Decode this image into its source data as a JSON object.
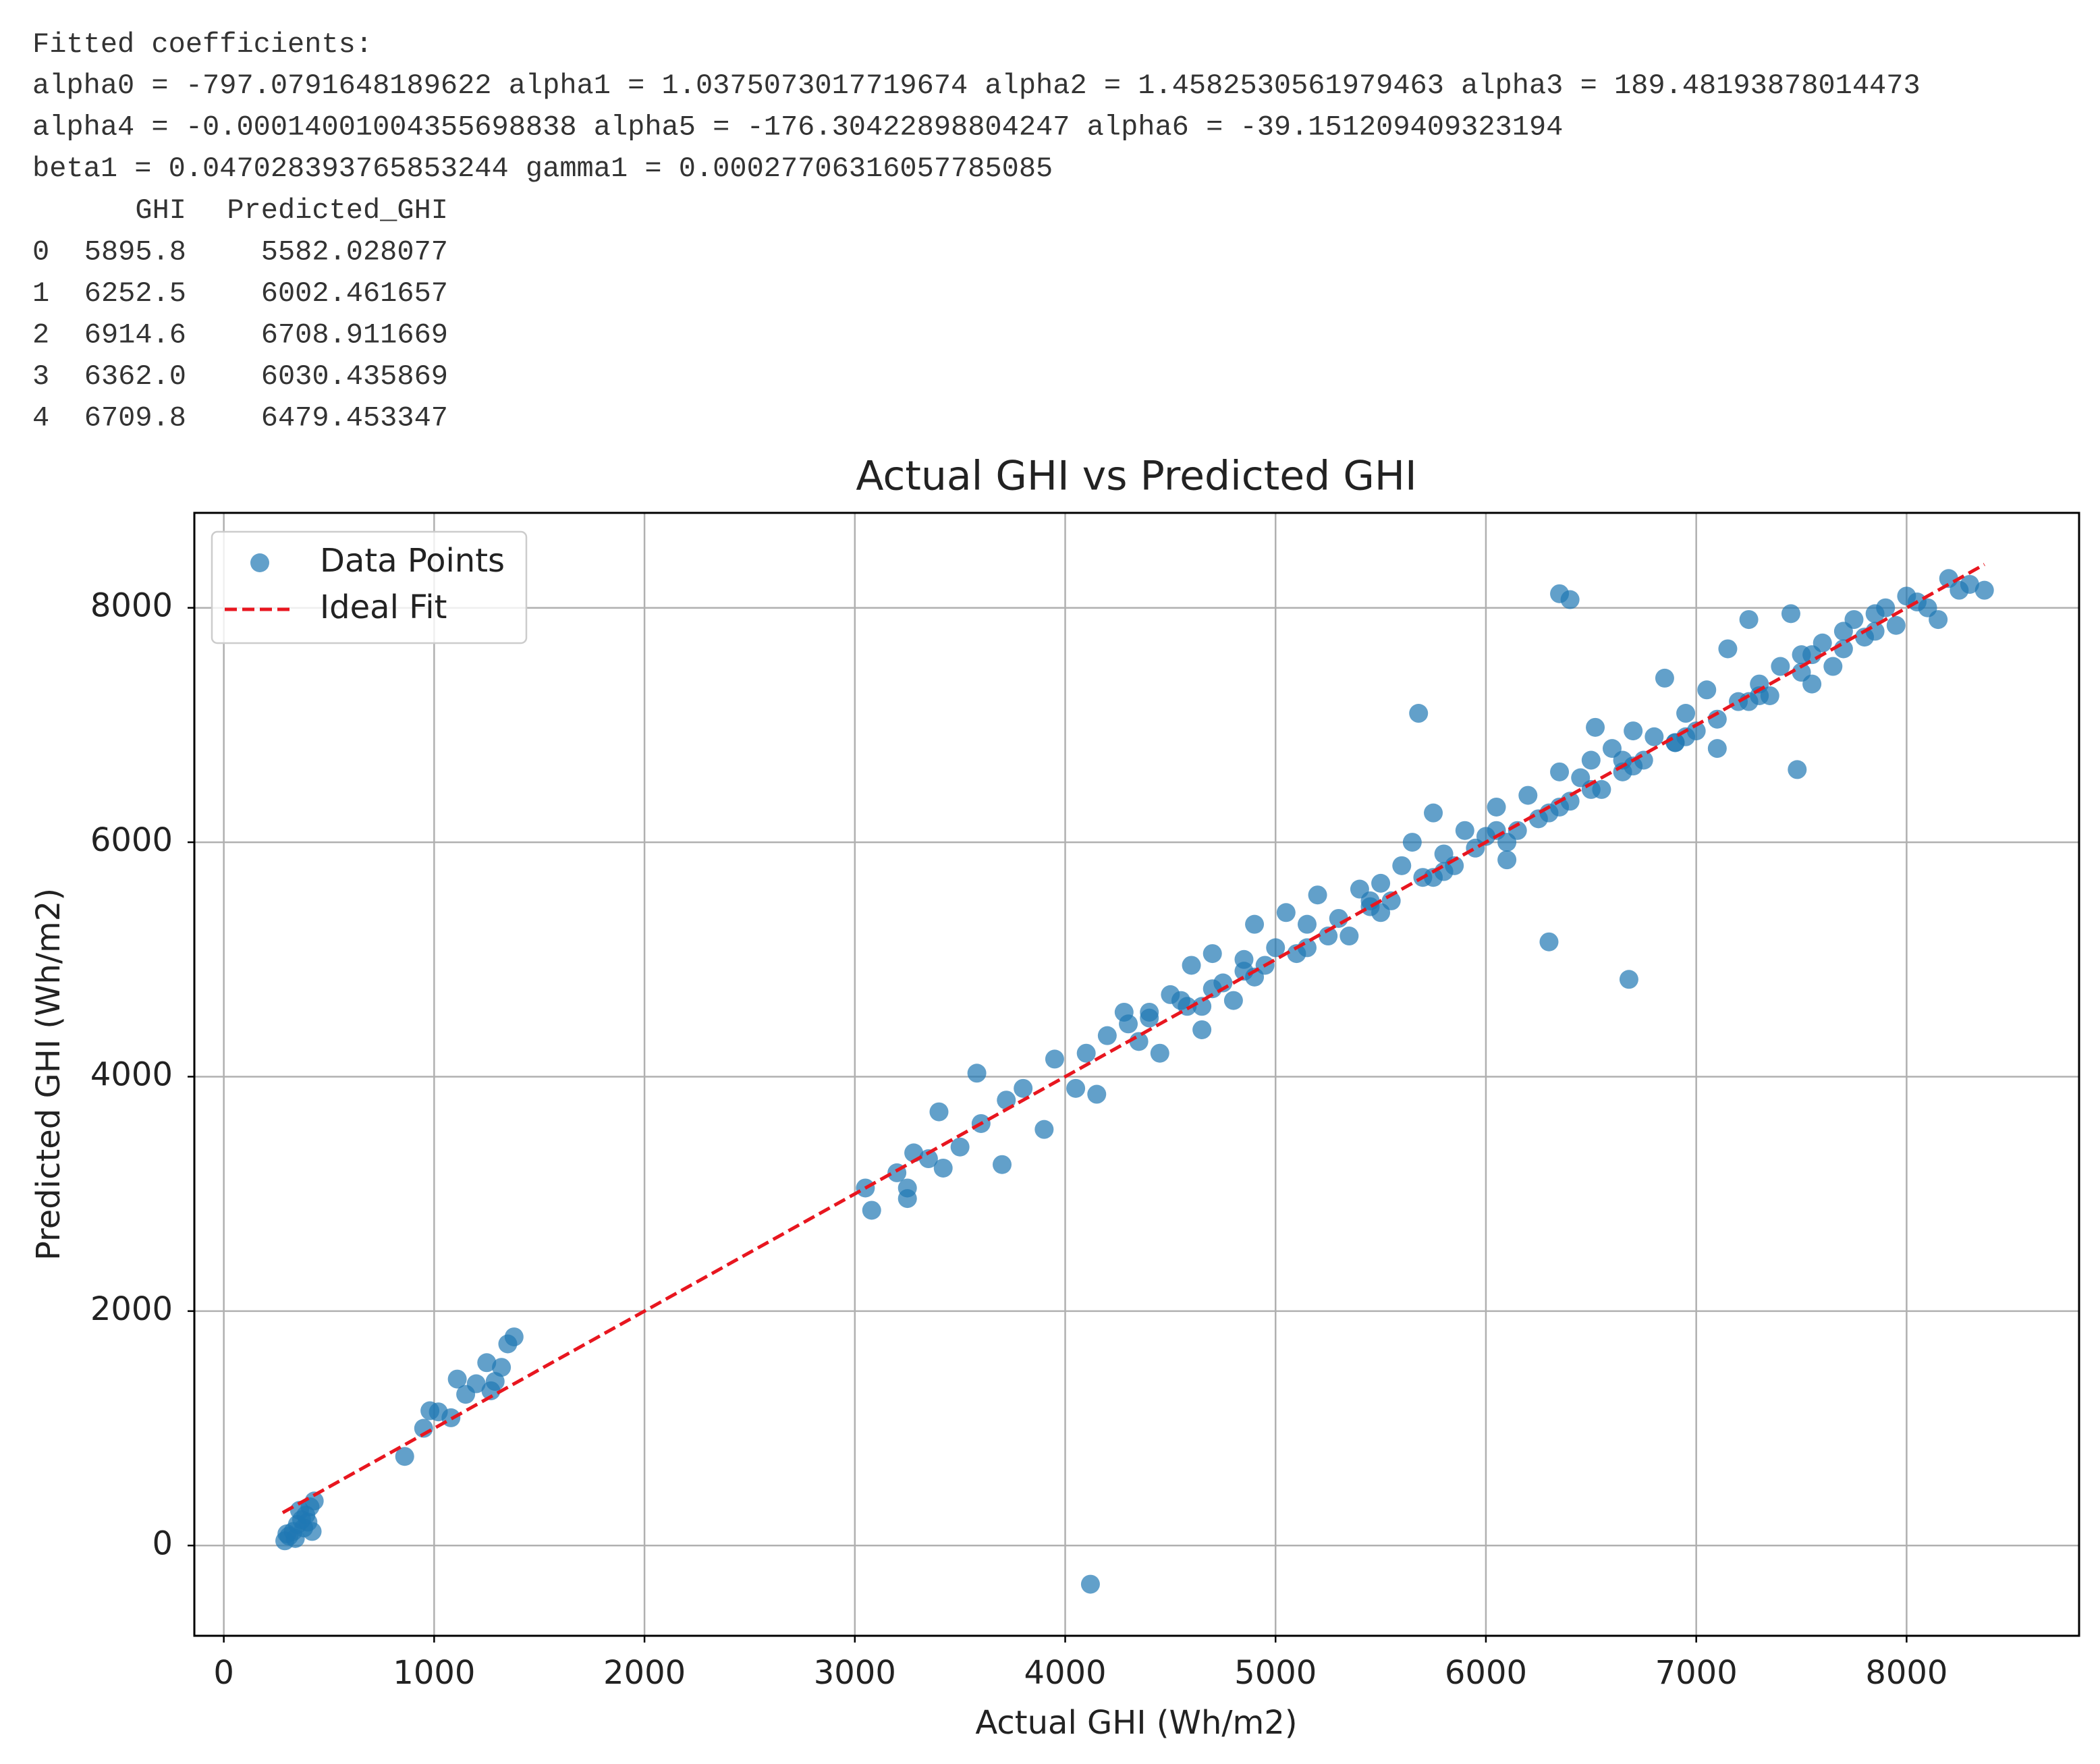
{
  "console": {
    "heading": "Fitted coefficients:",
    "lines": [
      "alpha0 = -797.0791648189622 alpha1 = 1.0375073017719674 alpha2 = 1.4582530561979463 alpha3 = 189.48193878014473",
      "alpha4 = -0.00014001004355698838 alpha5 = -176.30422898804247 alpha6 = -39.151209409323194",
      "beta1 = 0.047028393765853244 gamma1 = 0.00027706316057785085"
    ],
    "table": {
      "columns": [
        "GHI",
        "Predicted_GHI"
      ],
      "index": [
        "0",
        "1",
        "2",
        "3",
        "4"
      ],
      "rows": [
        [
          "5895.8",
          "5582.028077"
        ],
        [
          "6252.5",
          "6002.461657"
        ],
        [
          "6914.6",
          "6708.911669"
        ],
        [
          "6362.0",
          "6030.435869"
        ],
        [
          "6709.8",
          "6479.453347"
        ]
      ]
    }
  },
  "chart_data": {
    "type": "scatter",
    "title": "Actual GHI vs Predicted GHI",
    "x_label": "Actual GHI (Wh/m2)",
    "y_label": "Predicted GHI (Wh/m2)",
    "xlim": [
      -140,
      8820
    ],
    "ylim": [
      -770,
      8810
    ],
    "xticks": [
      0,
      1000,
      2000,
      3000,
      4000,
      5000,
      6000,
      7000,
      8000
    ],
    "yticks": [
      0,
      2000,
      4000,
      6000,
      8000
    ],
    "grid": true,
    "legend": "upper-left",
    "series": [
      {
        "name": "Data Points",
        "kind": "scatter",
        "color": "#1f77b4",
        "opacity": 0.7,
        "x": [
          290,
          310,
          330,
          350,
          370,
          390,
          410,
          430,
          300,
          340,
          380,
          420,
          360,
          400,
          860,
          950,
          980,
          1020,
          1080,
          1110,
          1150,
          1200,
          1250,
          1290,
          1320,
          1350,
          1380,
          1270,
          3050,
          3080,
          3200,
          3250,
          3250,
          3280,
          3350,
          3400,
          3420,
          3500,
          3600,
          3700,
          3720,
          3800,
          3900,
          3580,
          3950,
          4050,
          4100,
          4150,
          4200,
          4280,
          4350,
          4400,
          4450,
          4500,
          4580,
          4600,
          4650,
          4700,
          4750,
          4800,
          4850,
          4900,
          4950,
          5000,
          4120,
          5050,
          5100,
          5150,
          5200,
          5300,
          5350,
          5400,
          5450,
          5500,
          5550,
          5600,
          5650,
          5680,
          5700,
          5750,
          5800,
          5850,
          5900,
          5950,
          6000,
          6050,
          6100,
          6150,
          6200,
          6250,
          6300,
          6350,
          6350,
          6400,
          6400,
          6450,
          6500,
          6520,
          6550,
          6600,
          6650,
          6680,
          6700,
          6750,
          6800,
          6850,
          6900,
          6950,
          7000,
          7050,
          7100,
          7150,
          7200,
          7250,
          7300,
          7350,
          7400,
          7450,
          7480,
          7500,
          7550,
          7600,
          7650,
          7700,
          7750,
          7800,
          7850,
          7900,
          7950,
          8000,
          8050,
          8100,
          8150,
          8200,
          8250,
          8300,
          8370,
          4300,
          4550,
          4700,
          4900,
          5250,
          5500,
          5800,
          6100,
          6300,
          6500,
          6700,
          6900,
          7100,
          7300,
          7500,
          7700,
          4400,
          4650,
          4850,
          5150,
          5450,
          5750,
          6050,
          6350,
          6650,
          6950,
          7250,
          7550,
          7850
        ],
        "values": [
          40,
          80,
          120,
          180,
          220,
          260,
          330,
          380,
          100,
          60,
          150,
          120,
          300,
          200,
          760,
          1000,
          1150,
          1140,
          1090,
          1420,
          1290,
          1380,
          1560,
          1400,
          1520,
          1720,
          1780,
          1320,
          3050,
          2860,
          3180,
          3050,
          2960,
          3350,
          3300,
          3700,
          3220,
          3400,
          3600,
          3250,
          3800,
          3900,
          3550,
          4030,
          4150,
          3900,
          4200,
          3850,
          4350,
          4550,
          4300,
          4500,
          4200,
          4700,
          4600,
          4950,
          4400,
          5050,
          4800,
          4650,
          5000,
          5300,
          4950,
          5100,
          -330,
          5400,
          5050,
          5300,
          5550,
          5350,
          5200,
          5600,
          5450,
          5650,
          5500,
          5800,
          6000,
          7100,
          5700,
          6250,
          5900,
          5800,
          6100,
          5950,
          6050,
          6300,
          5850,
          6100,
          6400,
          6200,
          5150,
          6600,
          8120,
          8070,
          6350,
          6550,
          6700,
          6980,
          6450,
          6800,
          6600,
          4830,
          6950,
          6700,
          6900,
          7400,
          6850,
          7100,
          6950,
          7300,
          6800,
          7650,
          7200,
          7900,
          7350,
          7250,
          7500,
          7950,
          6620,
          7600,
          7350,
          7700,
          7500,
          7800,
          7900,
          7750,
          7950,
          8000,
          7850,
          8100,
          8050,
          8000,
          7900,
          8250,
          8150,
          8200,
          8150,
          4450,
          4650,
          4750,
          4850,
          5200,
          5400,
          5750,
          6000,
          6250,
          6450,
          6650,
          6850,
          7050,
          7250,
          7450,
          7650,
          4550,
          4600,
          4900,
          5100,
          5500,
          5700,
          6100,
          6300,
          6700,
          6900,
          7200,
          7600,
          7800
        ]
      },
      {
        "name": "Ideal Fit",
        "kind": "line",
        "color": "#e8161f",
        "dashed": true,
        "x": [
          280,
          8370
        ],
        "values": [
          280,
          8370
        ]
      }
    ]
  }
}
